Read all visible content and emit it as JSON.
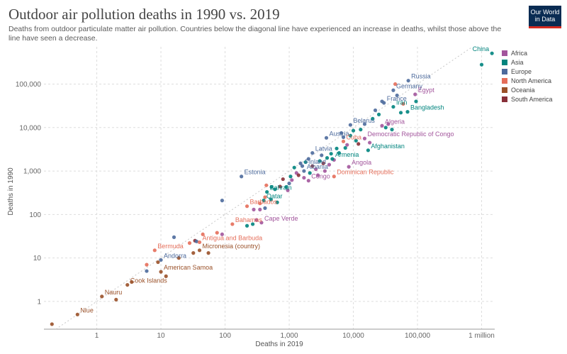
{
  "header": {
    "title": "Outdoor air pollution deaths in 1990 vs. 2019",
    "subtitle": "Deaths from outdoor particulate matter air pollution. Countries below the diagonal line have experienced an increase in deaths, whilst those above the line have seen a decrease.",
    "logo_line1": "Our World",
    "logo_line2": "in Data"
  },
  "colors": {
    "Africa": "#a2559c",
    "Asia": "#00847e",
    "Europe": "#4c6a9c",
    "North America": "#e56e5a",
    "Oceania": "#9a5129",
    "South America": "#883039",
    "grid": "#dddddd",
    "diagonal": "#c8c8c8"
  },
  "chart_data": {
    "type": "scatter",
    "title": "Outdoor air pollution deaths in 1990 vs. 2019",
    "xlabel": "Deaths in 2019",
    "ylabel": "Deaths in 1990",
    "xscale": "log",
    "yscale": "log",
    "xlim": [
      0.15,
      1600000
    ],
    "ylim": [
      0.23,
      720000
    ],
    "x_ticks": [
      {
        "value": 1,
        "label": "1"
      },
      {
        "value": 10,
        "label": "10"
      },
      {
        "value": 100,
        "label": "100"
      },
      {
        "value": 1000,
        "label": "1,000"
      },
      {
        "value": 10000,
        "label": "10,000"
      },
      {
        "value": 100000,
        "label": "100,000"
      },
      {
        "value": 1000000,
        "label": "1 million"
      }
    ],
    "y_ticks": [
      {
        "value": 1,
        "label": "1"
      },
      {
        "value": 10,
        "label": "10"
      },
      {
        "value": 100,
        "label": "100"
      },
      {
        "value": 1000,
        "label": "1,000"
      },
      {
        "value": 10000,
        "label": "10,000"
      },
      {
        "value": 100000,
        "label": "100,000"
      }
    ],
    "grid": true,
    "legend_position": "right",
    "legend": [
      "Africa",
      "Asia",
      "Europe",
      "North America",
      "Oceania",
      "South America"
    ],
    "labeled_points": [
      {
        "label": "China",
        "x": 1450000,
        "y": 510000,
        "region": "Asia"
      },
      {
        "label": "Russia",
        "x": 72000,
        "y": 120000,
        "region": "Europe"
      },
      {
        "label": "Germany",
        "x": 42000,
        "y": 72000,
        "region": "Europe"
      },
      {
        "label": "Egypt",
        "x": 92000,
        "y": 58000,
        "region": "Africa"
      },
      {
        "label": "Iran",
        "x": 42000,
        "y": 30000,
        "region": "Asia"
      },
      {
        "label": "France",
        "x": 30000,
        "y": 37000,
        "region": "Europe"
      },
      {
        "label": "Bangladesh",
        "x": 70000,
        "y": 23000,
        "region": "Asia"
      },
      {
        "label": "Algeria",
        "x": 28000,
        "y": 11000,
        "region": "Africa"
      },
      {
        "label": "Belarus",
        "x": 9000,
        "y": 11500,
        "region": "Europe"
      },
      {
        "label": "Austria",
        "x": 3800,
        "y": 5800,
        "region": "Europe"
      },
      {
        "label": "Democratic Republic of Congo",
        "x": 15000,
        "y": 5600,
        "region": "Africa"
      },
      {
        "label": "Cuba",
        "x": 7000,
        "y": 4800,
        "region": "North America"
      },
      {
        "label": "Latvia",
        "x": 2300,
        "y": 2600,
        "region": "Europe"
      },
      {
        "label": "Afghanistan",
        "x": 17000,
        "y": 3000,
        "region": "Asia"
      },
      {
        "label": "Armenia",
        "x": 4700,
        "y": 1900,
        "region": "Asia"
      },
      {
        "label": "Finland",
        "x": 1600,
        "y": 1300,
        "region": "Europe"
      },
      {
        "label": "Angola",
        "x": 8500,
        "y": 1250,
        "region": "Africa"
      },
      {
        "label": "Albania",
        "x": 1700,
        "y": 1000,
        "region": "Europe"
      },
      {
        "label": "Estonia",
        "x": 180,
        "y": 750,
        "region": "Europe"
      },
      {
        "label": "Dominican Republic",
        "x": 5000,
        "y": 750,
        "region": "North America"
      },
      {
        "label": "Congo",
        "x": 2000,
        "y": 600,
        "region": "Africa"
      },
      {
        "label": "Bahrain",
        "x": 450,
        "y": 330,
        "region": "Asia"
      },
      {
        "label": "Qatar",
        "x": 400,
        "y": 210,
        "region": "Asia"
      },
      {
        "label": "Barbados",
        "x": 220,
        "y": 155,
        "region": "North America"
      },
      {
        "label": "Bahamas",
        "x": 130,
        "y": 60,
        "region": "North America"
      },
      {
        "label": "Cape Verde",
        "x": 370,
        "y": 65,
        "region": "Africa"
      },
      {
        "label": "Antigua and Barbuda",
        "x": 40,
        "y": 23,
        "region": "North America"
      },
      {
        "label": "Micronesia (country)",
        "x": 40,
        "y": 15,
        "region": "Oceania"
      },
      {
        "label": "Bermuda",
        "x": 8,
        "y": 15,
        "region": "North America"
      },
      {
        "label": "Andorra",
        "x": 10,
        "y": 9,
        "region": "Europe"
      },
      {
        "label": "American Samoa",
        "x": 10,
        "y": 4.8,
        "region": "Oceania"
      },
      {
        "label": "Cook Islands",
        "x": 3,
        "y": 2.4,
        "region": "Oceania"
      },
      {
        "label": "Nauru",
        "x": 1.2,
        "y": 1.3,
        "region": "Oceania"
      },
      {
        "label": "Niue",
        "x": 0.5,
        "y": 0.5,
        "region": "Oceania"
      }
    ],
    "points": [
      {
        "x": 0.2,
        "y": 0.3,
        "region": "Oceania"
      },
      {
        "x": 2,
        "y": 1.1,
        "region": "Oceania"
      },
      {
        "x": 3.5,
        "y": 2.8,
        "region": "Oceania"
      },
      {
        "x": 6,
        "y": 5,
        "region": "Europe"
      },
      {
        "x": 6,
        "y": 7,
        "region": "North America"
      },
      {
        "x": 9,
        "y": 8,
        "region": "Oceania"
      },
      {
        "x": 12,
        "y": 3.8,
        "region": "Oceania"
      },
      {
        "x": 16,
        "y": 30,
        "region": "Europe"
      },
      {
        "x": 19,
        "y": 10,
        "region": "Oceania"
      },
      {
        "x": 28,
        "y": 22,
        "region": "North America"
      },
      {
        "x": 32,
        "y": 13,
        "region": "Oceania"
      },
      {
        "x": 34,
        "y": 25,
        "region": "South America"
      },
      {
        "x": 36,
        "y": 24,
        "region": "Europe"
      },
      {
        "x": 45,
        "y": 35,
        "region": "North America"
      },
      {
        "x": 55,
        "y": 13,
        "region": "Oceania"
      },
      {
        "x": 75,
        "y": 38,
        "region": "North America"
      },
      {
        "x": 90,
        "y": 35,
        "region": "Africa"
      },
      {
        "x": 90,
        "y": 210,
        "region": "Europe"
      },
      {
        "x": 220,
        "y": 55,
        "region": "Asia"
      },
      {
        "x": 270,
        "y": 60,
        "region": "Asia"
      },
      {
        "x": 310,
        "y": 75,
        "region": "Africa"
      },
      {
        "x": 280,
        "y": 130,
        "region": "Africa"
      },
      {
        "x": 350,
        "y": 130,
        "region": "Africa"
      },
      {
        "x": 350,
        "y": 180,
        "region": "North America"
      },
      {
        "x": 420,
        "y": 140,
        "region": "Europe"
      },
      {
        "x": 520,
        "y": 220,
        "region": "Asia"
      },
      {
        "x": 650,
        "y": 190,
        "region": "Asia"
      },
      {
        "x": 420,
        "y": 250,
        "region": "North America"
      },
      {
        "x": 440,
        "y": 470,
        "region": "North America"
      },
      {
        "x": 530,
        "y": 430,
        "region": "Asia"
      },
      {
        "x": 600,
        "y": 380,
        "region": "Asia"
      },
      {
        "x": 720,
        "y": 440,
        "region": "South America"
      },
      {
        "x": 800,
        "y": 650,
        "region": "South America"
      },
      {
        "x": 900,
        "y": 430,
        "region": "Asia"
      },
      {
        "x": 950,
        "y": 360,
        "region": "Africa"
      },
      {
        "x": 1000,
        "y": 520,
        "region": "Europe"
      },
      {
        "x": 1050,
        "y": 750,
        "region": "Asia"
      },
      {
        "x": 1100,
        "y": 620,
        "region": "Africa"
      },
      {
        "x": 1200,
        "y": 1200,
        "region": "Asia"
      },
      {
        "x": 1300,
        "y": 900,
        "region": "Africa"
      },
      {
        "x": 1400,
        "y": 800,
        "region": "South America"
      },
      {
        "x": 1500,
        "y": 1500,
        "region": "Europe"
      },
      {
        "x": 1700,
        "y": 700,
        "region": "Africa"
      },
      {
        "x": 1800,
        "y": 1600,
        "region": "Asia"
      },
      {
        "x": 2000,
        "y": 1900,
        "region": "Europe"
      },
      {
        "x": 2100,
        "y": 900,
        "region": "Asia"
      },
      {
        "x": 2300,
        "y": 1300,
        "region": "South America"
      },
      {
        "x": 2600,
        "y": 1100,
        "region": "Africa"
      },
      {
        "x": 2800,
        "y": 800,
        "region": "Africa"
      },
      {
        "x": 3000,
        "y": 1700,
        "region": "Asia"
      },
      {
        "x": 3200,
        "y": 2300,
        "region": "Europe"
      },
      {
        "x": 3400,
        "y": 1500,
        "region": "South America"
      },
      {
        "x": 3600,
        "y": 1000,
        "region": "Africa"
      },
      {
        "x": 3900,
        "y": 2000,
        "region": "Asia"
      },
      {
        "x": 4200,
        "y": 1400,
        "region": "Africa"
      },
      {
        "x": 4500,
        "y": 2500,
        "region": "Asia"
      },
      {
        "x": 5000,
        "y": 1800,
        "region": "Africa"
      },
      {
        "x": 5500,
        "y": 3300,
        "region": "Asia"
      },
      {
        "x": 6000,
        "y": 2600,
        "region": "Asia"
      },
      {
        "x": 6500,
        "y": 7500,
        "region": "Europe"
      },
      {
        "x": 7000,
        "y": 6000,
        "region": "Europe"
      },
      {
        "x": 7500,
        "y": 3400,
        "region": "Asia"
      },
      {
        "x": 8000,
        "y": 4000,
        "region": "Africa"
      },
      {
        "x": 9000,
        "y": 6500,
        "region": "Asia"
      },
      {
        "x": 10000,
        "y": 8500,
        "region": "Asia"
      },
      {
        "x": 11000,
        "y": 5000,
        "region": "Asia"
      },
      {
        "x": 12000,
        "y": 4200,
        "region": "South America"
      },
      {
        "x": 13000,
        "y": 9000,
        "region": "Asia"
      },
      {
        "x": 15000,
        "y": 12000,
        "region": "Europe"
      },
      {
        "x": 18000,
        "y": 4500,
        "region": "Africa"
      },
      {
        "x": 20000,
        "y": 16000,
        "region": "Asia"
      },
      {
        "x": 22000,
        "y": 25000,
        "region": "Europe"
      },
      {
        "x": 25000,
        "y": 20000,
        "region": "Asia"
      },
      {
        "x": 28000,
        "y": 40000,
        "region": "Europe"
      },
      {
        "x": 32000,
        "y": 10000,
        "region": "Asia"
      },
      {
        "x": 35000,
        "y": 12000,
        "region": "Africa"
      },
      {
        "x": 40000,
        "y": 9000,
        "region": "Asia"
      },
      {
        "x": 45000,
        "y": 100000,
        "region": "North America"
      },
      {
        "x": 48000,
        "y": 55000,
        "region": "Europe"
      },
      {
        "x": 55000,
        "y": 22000,
        "region": "Asia"
      },
      {
        "x": 60000,
        "y": 35000,
        "region": "North America"
      },
      {
        "x": 95000,
        "y": 40000,
        "region": "Asia"
      },
      {
        "x": 1000000,
        "y": 280000,
        "region": "Asia"
      }
    ]
  }
}
